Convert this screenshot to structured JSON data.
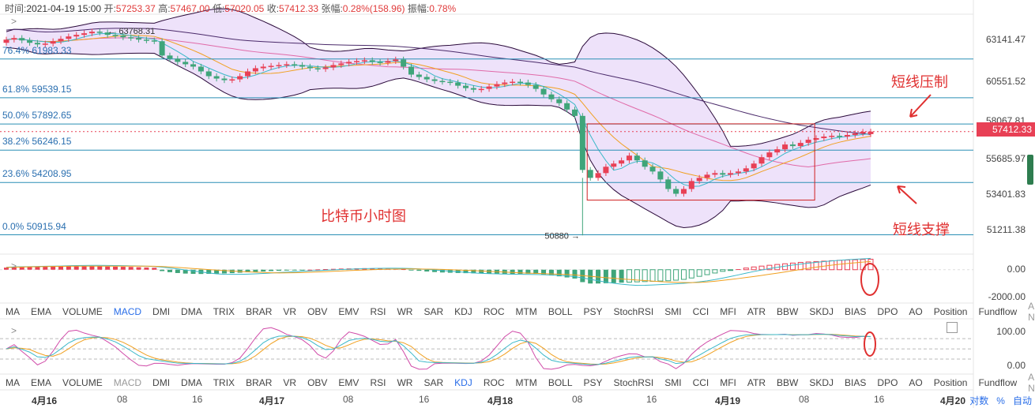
{
  "header": {
    "time_label": "时间:",
    "time": "2021-04-19 15:00",
    "open_label": "开:",
    "open": "57253.37",
    "high_label": "高:",
    "high": "57467.00",
    "low_label": "低:",
    "low": "57020.05",
    "close_label": "收:",
    "close": "57412.33",
    "change_label": "张幅:",
    "change": "0.28%(158.96)",
    "amp_label": "振幅:",
    "amp": "0.78%"
  },
  "colors": {
    "up": "#e84055",
    "down": "#3fa57a",
    "fib": "#2a8fb5",
    "bb_fill": "#e8d8f8",
    "bb_line": "#2a0a3a",
    "annot": "#e03030"
  },
  "chart_data": {
    "type": "candlestick",
    "title": "比特币小时图",
    "ylim": [
      49900,
      64800
    ],
    "y_ticks": [
      "63141.47",
      "60551.52",
      "58067.81",
      "55685.97",
      "53401.83",
      "51211.38"
    ],
    "last_price": "57412.33",
    "max_label": "63768.31",
    "min_label": "50880",
    "fib_levels": [
      {
        "label": "76.4% 61983.33",
        "value": 61983.33
      },
      {
        "label": "61.8% 59539.15",
        "value": 59539.15
      },
      {
        "label": "50.0% 57892.65",
        "value": 57892.65
      },
      {
        "label": "38.2% 56246.15",
        "value": 56246.15
      },
      {
        "label": "23.6% 54208.95",
        "value": 54208.95
      },
      {
        "label": "0.0% 50915.94",
        "value": 50915.94
      }
    ],
    "annotations": [
      "短线压制",
      "短线支撑"
    ],
    "box": {
      "from_index": 75,
      "to_index": 103,
      "low": 53100,
      "high": 57900
    },
    "close": [
      63200,
      63300,
      63150,
      63000,
      62900,
      62950,
      63100,
      63250,
      63400,
      63500,
      63600,
      63700,
      63650,
      63500,
      63450,
      63350,
      63300,
      63200,
      63150,
      63100,
      62200,
      62000,
      61800,
      61650,
      61500,
      61200,
      60900,
      60750,
      60650,
      60700,
      60900,
      61200,
      61400,
      61500,
      61550,
      61600,
      61650,
      61600,
      61500,
      61400,
      61350,
      61450,
      61600,
      61700,
      61800,
      61850,
      61900,
      61800,
      61750,
      61850,
      61950,
      61500,
      61000,
      60850,
      60700,
      60600,
      60550,
      60500,
      60300,
      60150,
      60050,
      60100,
      60250,
      60400,
      60500,
      60550,
      60500,
      60350,
      60100,
      59750,
      59450,
      59200,
      58800,
      58400,
      55000,
      54500,
      54800,
      55200,
      55400,
      55600,
      55900,
      55600,
      55200,
      54900,
      54400,
      53800,
      53500,
      53800,
      54300,
      54500,
      54700,
      54800,
      54700,
      54800,
      54900,
      55100,
      55400,
      55800,
      56100,
      56300,
      56600,
      56500,
      56700,
      56900,
      57000,
      57100,
      57150,
      57100,
      57200,
      57300,
      57400,
      57412
    ],
    "open": [
      63000,
      63200,
      63300,
      63150,
      63000,
      62900,
      62950,
      63100,
      63250,
      63400,
      63500,
      63600,
      63700,
      63650,
      63500,
      63450,
      63350,
      63300,
      63200,
      63150,
      63100,
      62200,
      62000,
      61800,
      61650,
      61500,
      61200,
      60900,
      60750,
      60650,
      60700,
      60900,
      61200,
      61400,
      61500,
      61550,
      61600,
      61650,
      61600,
      61500,
      61400,
      61350,
      61450,
      61600,
      61700,
      61800,
      61850,
      61900,
      61800,
      61750,
      61850,
      61950,
      61500,
      61000,
      60850,
      60700,
      60600,
      60550,
      60500,
      60300,
      60150,
      60050,
      60100,
      60250,
      60400,
      60500,
      60550,
      60500,
      60350,
      60100,
      59750,
      59450,
      59200,
      58800,
      58400,
      55000,
      54500,
      54800,
      55200,
      55400,
      55600,
      55900,
      55600,
      55200,
      54900,
      54400,
      53800,
      53500,
      53800,
      54300,
      54500,
      54700,
      54800,
      54700,
      54800,
      54900,
      55100,
      55400,
      55800,
      56100,
      56300,
      56600,
      56500,
      56700,
      56900,
      57000,
      57100,
      57150,
      57100,
      57200,
      57300,
      57253
    ],
    "macd_hist": [
      150,
      180,
      200,
      220,
      240,
      250,
      260,
      270,
      280,
      270,
      260,
      250,
      240,
      230,
      220,
      210,
      200,
      180,
      160,
      140,
      -100,
      -180,
      -240,
      -280,
      -300,
      -310,
      -300,
      -290,
      -270,
      -250,
      -220,
      -190,
      -160,
      -130,
      -100,
      -80,
      -60,
      -40,
      -20,
      0,
      20,
      40,
      60,
      80,
      90,
      100,
      110,
      100,
      90,
      80,
      70,
      40,
      -20,
      -80,
      -130,
      -170,
      -200,
      -220,
      -240,
      -250,
      -260,
      -270,
      -280,
      -290,
      -300,
      -310,
      -300,
      -290,
      -300,
      -350,
      -420,
      -480,
      -560,
      -640,
      -900,
      -1000,
      -1000,
      -980,
      -960,
      -940,
      -900,
      -880,
      -860,
      -840,
      -820,
      -800,
      -760,
      -700,
      -600,
      -480,
      -360,
      -240,
      -120,
      -40,
      40,
      120,
      200,
      260,
      320,
      380,
      430,
      480,
      530,
      560,
      590,
      620,
      650,
      680,
      700,
      720,
      740,
      760
    ],
    "macd_ylim": [
      -2300,
      900
    ],
    "macd_ticks": [
      "0.00",
      "-2000.00"
    ],
    "kdj_ylim": [
      -15,
      120
    ],
    "kdj_ticks": [
      "100.00",
      "0.00"
    ],
    "x_ticks": [
      "4月16",
      "08",
      "16",
      "4月17",
      "08",
      "16",
      "4月18",
      "08",
      "16",
      "4月19",
      "08",
      "16",
      "4月20"
    ]
  },
  "indicator_tabs": [
    "MA",
    "EMA",
    "VOLUME",
    "MACD",
    "DMI",
    "DMA",
    "TRIX",
    "BRAR",
    "VR",
    "OBV",
    "EMV",
    "RSI",
    "WR",
    "SAR",
    "KDJ",
    "ROC",
    "MTM",
    "BOLL",
    "PSY",
    "StochRSI",
    "SMI",
    "CCI",
    "MFI",
    "ATR",
    "BBW",
    "SKDJ",
    "BIAS",
    "DPO",
    "AO",
    "Position",
    "Fundflow",
    "AI-NetVOL"
  ],
  "bottom_controls": {
    "log": "对数",
    "pct": "%",
    "auto": "自动"
  },
  "icons": {
    "expand": "chevron-right-icon",
    "fullscreen": "fullscreen-icon"
  }
}
